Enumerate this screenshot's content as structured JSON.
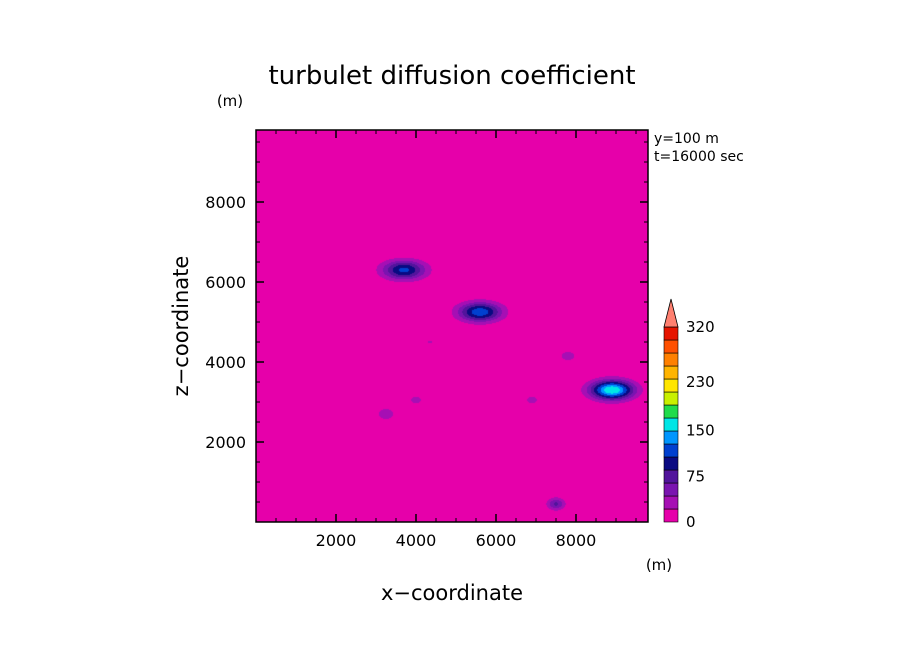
{
  "chart_data": {
    "type": "heatmap",
    "title": "turbulet diffusion coefficient",
    "xlabel": "x−coordinate",
    "ylabel": "z−coordinate",
    "x_unit": "(m)",
    "y_unit": "(m)",
    "annotations": [
      "y=100  m",
      "t=16000 sec"
    ],
    "xlim": [
      0,
      9800
    ],
    "ylim": [
      0,
      9800
    ],
    "xticks": [
      2000,
      4000,
      6000,
      8000
    ],
    "yticks": [
      2000,
      4000,
      6000,
      8000
    ],
    "xtick_labels": [
      "2000",
      "4000",
      "6000",
      "8000"
    ],
    "ytick_labels": [
      "2000",
      "4000",
      "6000",
      "8000"
    ],
    "colorbar": {
      "levels": [
        0,
        19,
        38,
        56,
        75,
        94,
        113,
        131,
        150,
        169,
        188,
        206,
        230,
        263,
        296,
        320
      ],
      "colors": [
        "#e600aa",
        "#a60fb4",
        "#7a14b0",
        "#52149c",
        "#0a0a82",
        "#0040d0",
        "#0096ff",
        "#00e6e6",
        "#20dc4a",
        "#c8f000",
        "#ffe600",
        "#ffb400",
        "#ff8000",
        "#ff5000",
        "#e61400",
        "#ff8070"
      ],
      "labeled_ticks": [
        0,
        75,
        150,
        230,
        320
      ],
      "labels": [
        "0",
        "75",
        "150",
        "230",
        "320"
      ],
      "extend": "max"
    },
    "features": [
      {
        "x": 3700,
        "z": 6300,
        "peak": 100
      },
      {
        "x": 5600,
        "z": 5250,
        "peak": 110
      },
      {
        "x": 8900,
        "z": 3300,
        "peak": 150
      },
      {
        "x": 7500,
        "z": 450,
        "peak": 60
      },
      {
        "x": 3250,
        "z": 2700,
        "peak": 35
      },
      {
        "x": 7800,
        "z": 4150,
        "peak": 30
      },
      {
        "x": 6900,
        "z": 3050,
        "peak": 25
      },
      {
        "x": 4000,
        "z": 3050,
        "peak": 25
      },
      {
        "x": 4350,
        "z": 4500,
        "peak": 20
      }
    ]
  }
}
